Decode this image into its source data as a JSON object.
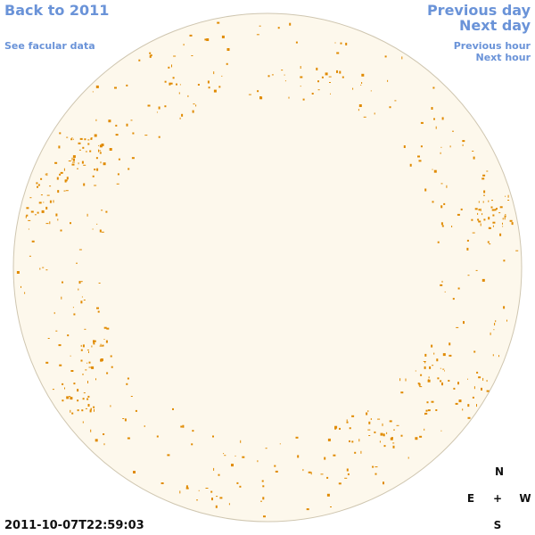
{
  "nav": {
    "back": "Back to 2011",
    "facular": "See facular data",
    "prev_day": "Previous day",
    "next_day": "Next day",
    "prev_hour": "Previous hour",
    "next_hour": "Next hour"
  },
  "timestamp": "2011-10-07T22:59:03",
  "compass": {
    "n": "N",
    "e": "E",
    "center": "+",
    "w": "W",
    "s": "S"
  }
}
